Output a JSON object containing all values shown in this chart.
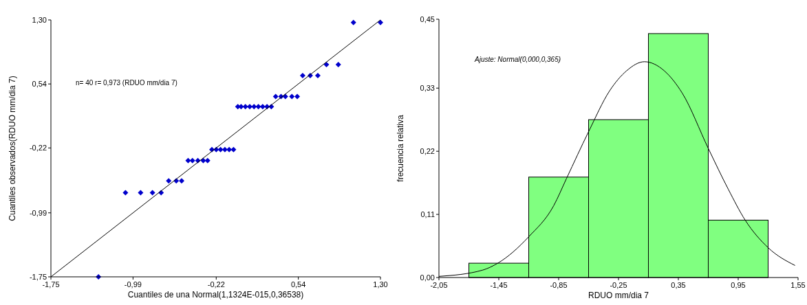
{
  "chart_data": [
    {
      "type": "scatter",
      "xlabel": "Cuantiles de una Normal(1,1324E-015,0,36538)",
      "ylabel": "Cuantiles observados(RDUO mm/dia 7)",
      "annotations": [
        "n= 40 r= 0,973 (RDUO mm/dia 7)"
      ],
      "xlim": [
        -1.75,
        1.3
      ],
      "ylim": [
        -1.75,
        1.3
      ],
      "xticks": [
        {
          "value": -1.75,
          "label": "-1,75"
        },
        {
          "value": -0.99,
          "label": "-0,99"
        },
        {
          "value": -0.22,
          "label": "-0,22"
        },
        {
          "value": 0.54,
          "label": "0,54"
        },
        {
          "value": 1.3,
          "label": "1,30"
        }
      ],
      "yticks": [
        {
          "value": -1.75,
          "label": "-1,75"
        },
        {
          "value": -0.99,
          "label": "-0,99"
        },
        {
          "value": -0.22,
          "label": "-0,22"
        },
        {
          "value": 0.54,
          "label": "0,54"
        },
        {
          "value": 1.3,
          "label": "1,30"
        }
      ],
      "grid": false,
      "marker": "diamond",
      "series": [
        {
          "color": "#0000cc",
          "x": [
            -1.31,
            -1.06,
            -0.92,
            -0.81,
            -0.73,
            -0.66,
            -0.59,
            -0.54,
            -0.48,
            -0.44,
            -0.39,
            -0.34,
            -0.3,
            -0.26,
            -0.22,
            -0.18,
            -0.14,
            -0.1,
            -0.06,
            -0.02,
            0.01,
            0.05,
            0.09,
            0.13,
            0.17,
            0.21,
            0.25,
            0.29,
            0.33,
            0.38,
            0.42,
            0.48,
            0.53,
            0.58,
            0.65,
            0.72,
            0.8,
            0.91,
            1.05,
            1.3
          ],
          "values": [
            -1.75,
            -0.75,
            -0.75,
            -0.75,
            -0.75,
            -0.61,
            -0.61,
            -0.61,
            -0.37,
            -0.37,
            -0.37,
            -0.37,
            -0.37,
            -0.24,
            -0.24,
            -0.24,
            -0.24,
            -0.24,
            -0.24,
            0.27,
            0.27,
            0.27,
            0.27,
            0.27,
            0.27,
            0.27,
            0.27,
            0.27,
            0.39,
            0.39,
            0.39,
            0.39,
            0.39,
            0.64,
            0.64,
            0.64,
            0.77,
            0.77,
            1.27,
            1.27
          ]
        },
        {
          "type": "line",
          "color": "#000000",
          "marker": "none",
          "x": [
            -1.75,
            1.3
          ],
          "values": [
            -1.75,
            1.3
          ]
        }
      ]
    },
    {
      "type": "histogram",
      "xlabel": "RDUO mm/dia 7",
      "ylabel": "frecuencia relativa",
      "annotations": [
        "Ajuste: Normal(0,000,0,365)"
      ],
      "xlim": [
        -2.05,
        1.55
      ],
      "ylim": [
        0,
        0.45
      ],
      "xticks": [
        {
          "value": -2.05,
          "label": "-2,05"
        },
        {
          "value": -1.45,
          "label": "-1,45"
        },
        {
          "value": -0.85,
          "label": "-0,85"
        },
        {
          "value": -0.25,
          "label": "-0,25"
        },
        {
          "value": 0.35,
          "label": "0,35"
        },
        {
          "value": 0.95,
          "label": "0,95"
        },
        {
          "value": 1.55,
          "label": "1,55"
        }
      ],
      "yticks": [
        {
          "value": 0,
          "label": "0,00"
        },
        {
          "value": 0.11,
          "label": "0,11"
        },
        {
          "value": 0.22,
          "label": "0,22"
        },
        {
          "value": 0.33,
          "label": "0,33"
        },
        {
          "value": 0.45,
          "label": "0,45"
        }
      ],
      "grid": false,
      "series": [
        {
          "color": "#80ff80",
          "bins": [
            -1.75,
            -1.15,
            -0.55,
            0.05,
            0.65,
            1.25
          ],
          "values": [
            0.025,
            0.175,
            0.275,
            0.425,
            0.1
          ]
        },
        {
          "type": "line",
          "color": "#000000",
          "marker": "none",
          "x": [
            -2.05,
            -1.61,
            -1.46,
            -1.15,
            -0.9,
            -0.77,
            -0.55,
            -0.34,
            -0.17,
            0.01,
            0.21,
            0.39,
            0.65,
            0.85,
            1.02,
            1.25,
            1.52
          ],
          "values": [
            0.002,
            0.013,
            0.025,
            0.071,
            0.125,
            0.173,
            0.254,
            0.325,
            0.36,
            0.376,
            0.36,
            0.321,
            0.225,
            0.154,
            0.1,
            0.052,
            0.021
          ]
        }
      ]
    }
  ]
}
